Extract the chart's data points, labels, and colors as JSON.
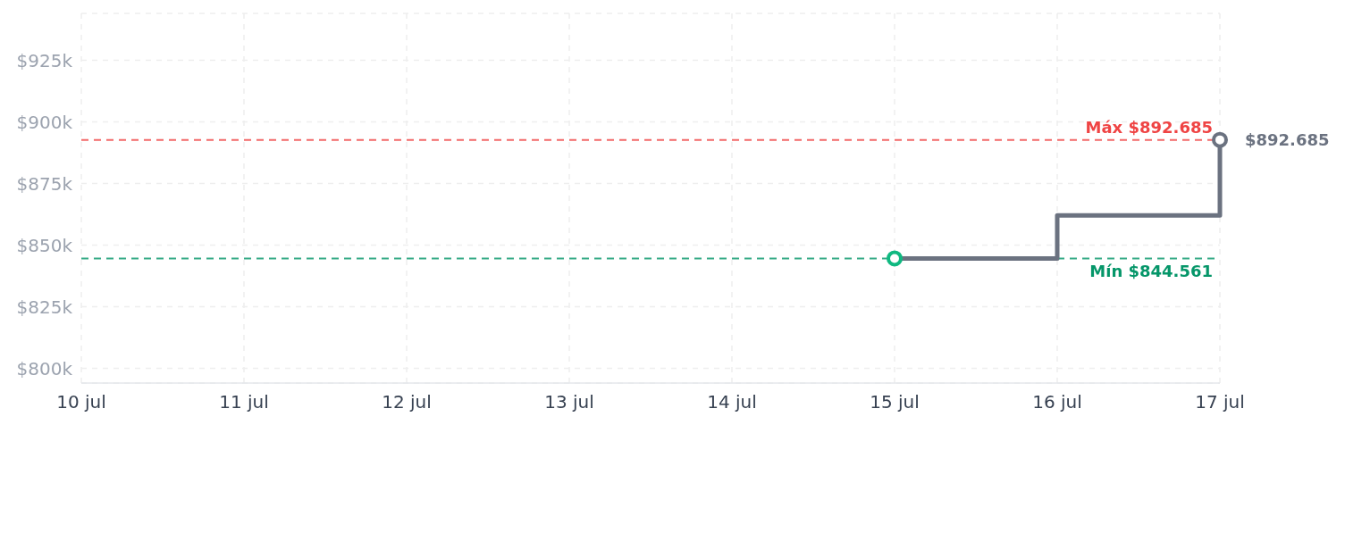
{
  "chart_data": {
    "type": "step",
    "x": [
      "--07-15",
      "--07-16",
      "--07-17"
    ],
    "series": [
      {
        "color": "#6b7280",
        "values": [
          844561,
          862000,
          892685
        ]
      },
      {
        "type": "scatter",
        "color": "#10b981",
        "x": [
          "--07-15"
        ],
        "values": [
          844561
        ],
        "marker": "circle"
      },
      {
        "type": "scatter",
        "color": "#6b7280",
        "x": [
          "--07-17"
        ],
        "values": [
          892685
        ],
        "marker": "circle",
        "value_labels": [
          "$892.685"
        ]
      }
    ],
    "xlim": [
      "--07-10",
      "--07-17"
    ],
    "xticks": [
      {
        "value": "--07-10",
        "label": "10 jul"
      },
      {
        "value": "--07-11",
        "label": "11 jul"
      },
      {
        "value": "--07-12",
        "label": "12 jul"
      },
      {
        "value": "--07-13",
        "label": "13 jul"
      },
      {
        "value": "--07-14",
        "label": "14 jul"
      },
      {
        "value": "--07-15",
        "label": "15 jul"
      },
      {
        "value": "--07-16",
        "label": "16 jul"
      },
      {
        "value": "--07-17",
        "label": "17 jul"
      }
    ],
    "ylim": [
      794000,
      944000
    ],
    "yticks": [
      {
        "value": 800000,
        "label": "$800k"
      },
      {
        "value": 825000,
        "label": "$825k"
      },
      {
        "value": 850000,
        "label": "$850k"
      },
      {
        "value": 875000,
        "label": "$875k"
      },
      {
        "value": 900000,
        "label": "$900k"
      },
      {
        "value": 925000,
        "label": "$925k"
      }
    ],
    "ref_lines": [
      {
        "axis": "y",
        "value": 892685,
        "label": "Máx $892.685",
        "color": "#ef4444",
        "line_style": "dashed"
      },
      {
        "axis": "y",
        "value": 844561,
        "label": "Mín $844.561",
        "color": "#059669",
        "line_style": "dashed"
      }
    ],
    "grid": true,
    "marker": "none",
    "line_style": "solid"
  }
}
